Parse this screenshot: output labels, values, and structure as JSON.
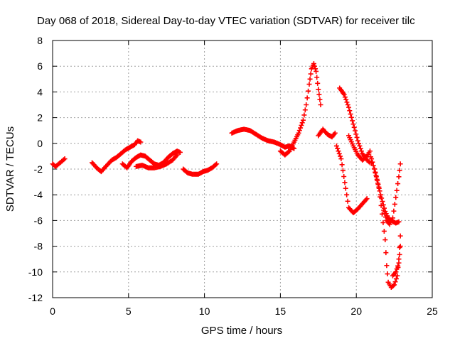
{
  "chart_data": {
    "type": "scatter",
    "title": "Day 068 of 2018, Sidereal Day-to-day VTEC variation (SDTVAR) for receiver tilc",
    "xlabel": "GPS time / hours",
    "ylabel": "SDTVAR / TECUs",
    "xlim": [
      0,
      25
    ],
    "ylim": [
      -12,
      8
    ],
    "xticks": [
      "0",
      "5",
      "10",
      "15",
      "20",
      "25"
    ],
    "yticks": [
      "-12",
      "-10",
      "-8",
      "-6",
      "-4",
      "-2",
      "0",
      "2",
      "4",
      "6",
      "8"
    ],
    "grid": true,
    "marker": "plus",
    "color": "#ff0000",
    "series": [
      {
        "points": [
          [
            0.0,
            -1.6
          ],
          [
            0.2,
            -1.8
          ],
          [
            0.4,
            -1.6
          ],
          [
            0.6,
            -1.4
          ],
          [
            0.8,
            -1.2
          ]
        ]
      },
      {
        "points": [
          [
            2.6,
            -1.5
          ],
          [
            2.9,
            -1.9
          ],
          [
            3.2,
            -2.2
          ],
          [
            3.5,
            -1.8
          ],
          [
            3.9,
            -1.3
          ],
          [
            4.2,
            -1.1
          ],
          [
            4.5,
            -0.8
          ],
          [
            4.8,
            -0.5
          ],
          [
            5.1,
            -0.3
          ],
          [
            5.4,
            -0.1
          ],
          [
            5.6,
            0.2
          ],
          [
            5.8,
            0.1
          ]
        ]
      },
      {
        "points": [
          [
            4.6,
            -1.6
          ],
          [
            4.9,
            -1.9
          ],
          [
            5.2,
            -1.4
          ],
          [
            5.5,
            -1.1
          ],
          [
            5.8,
            -0.9
          ],
          [
            6.1,
            -1.0
          ],
          [
            6.4,
            -1.3
          ],
          [
            6.7,
            -1.6
          ],
          [
            7.0,
            -1.7
          ],
          [
            7.3,
            -1.5
          ],
          [
            7.6,
            -1.1
          ],
          [
            7.9,
            -0.8
          ],
          [
            8.2,
            -0.6
          ],
          [
            8.4,
            -0.7
          ]
        ]
      },
      {
        "points": [
          [
            5.5,
            -1.8
          ],
          [
            5.9,
            -1.7
          ],
          [
            6.3,
            -1.9
          ],
          [
            6.7,
            -1.9
          ],
          [
            7.1,
            -1.8
          ],
          [
            7.5,
            -1.6
          ],
          [
            7.9,
            -1.3
          ],
          [
            8.2,
            -0.9
          ]
        ]
      },
      {
        "points": [
          [
            8.6,
            -2.0
          ],
          [
            8.9,
            -2.3
          ],
          [
            9.2,
            -2.4
          ],
          [
            9.6,
            -2.4
          ],
          [
            9.9,
            -2.2
          ],
          [
            10.2,
            -2.1
          ],
          [
            10.5,
            -1.9
          ],
          [
            10.8,
            -1.6
          ]
        ]
      },
      {
        "points": [
          [
            11.8,
            0.8
          ],
          [
            12.2,
            1.0
          ],
          [
            12.6,
            1.1
          ],
          [
            13.0,
            1.0
          ],
          [
            13.4,
            0.7
          ],
          [
            13.8,
            0.4
          ],
          [
            14.2,
            0.2
          ],
          [
            14.6,
            0.1
          ],
          [
            15.0,
            -0.1
          ],
          [
            15.3,
            -0.3
          ],
          [
            15.6,
            -0.2
          ],
          [
            15.9,
            -0.4
          ]
        ]
      },
      {
        "points": [
          [
            15.0,
            -0.6
          ],
          [
            15.3,
            -0.9
          ],
          [
            15.6,
            -0.6
          ],
          [
            15.9,
            0.1
          ],
          [
            16.2,
            0.8
          ],
          [
            16.5,
            1.8
          ],
          [
            16.7,
            3.0
          ],
          [
            16.9,
            4.6
          ],
          [
            17.05,
            5.8
          ],
          [
            17.2,
            6.2
          ],
          [
            17.35,
            5.6
          ],
          [
            17.5,
            4.2
          ],
          [
            17.65,
            3.0
          ]
        ]
      },
      {
        "points": [
          [
            17.5,
            0.6
          ],
          [
            17.8,
            1.1
          ],
          [
            18.1,
            0.7
          ],
          [
            18.4,
            0.5
          ],
          [
            18.6,
            0.8
          ]
        ]
      },
      {
        "points": [
          [
            18.7,
            -0.2
          ],
          [
            19.0,
            -1.2
          ],
          [
            19.3,
            -3.5
          ],
          [
            19.5,
            -5.0
          ],
          [
            19.8,
            -5.4
          ],
          [
            20.1,
            -5.1
          ],
          [
            20.4,
            -4.7
          ],
          [
            20.7,
            -4.3
          ]
        ]
      },
      {
        "points": [
          [
            18.9,
            4.3
          ],
          [
            19.2,
            3.8
          ],
          [
            19.5,
            2.8
          ],
          [
            19.8,
            1.5
          ],
          [
            20.1,
            0.2
          ],
          [
            20.4,
            -0.8
          ],
          [
            20.7,
            -1.3
          ],
          [
            20.9,
            -1.5
          ]
        ]
      },
      {
        "points": [
          [
            19.5,
            0.6
          ],
          [
            19.8,
            -0.2
          ],
          [
            20.1,
            -0.9
          ],
          [
            20.4,
            -1.3
          ],
          [
            20.7,
            -1.0
          ],
          [
            20.9,
            -0.6
          ],
          [
            21.0,
            -1.5
          ]
        ]
      },
      {
        "points": [
          [
            21.0,
            -1.2
          ],
          [
            21.3,
            -2.5
          ],
          [
            21.6,
            -4.0
          ],
          [
            21.9,
            -5.3
          ],
          [
            22.1,
            -5.8
          ],
          [
            22.3,
            -6.0
          ],
          [
            22.6,
            -6.2
          ],
          [
            22.8,
            -6.1
          ]
        ]
      },
      {
        "points": [
          [
            21.8,
            -5.2
          ],
          [
            22.0,
            -6.0
          ],
          [
            22.2,
            -6.3
          ],
          [
            22.4,
            -5.8
          ],
          [
            22.6,
            -4.2
          ],
          [
            22.8,
            -2.6
          ],
          [
            22.9,
            -1.6
          ]
        ]
      },
      {
        "points": [
          [
            21.2,
            -2.0
          ],
          [
            21.5,
            -3.5
          ],
          [
            21.7,
            -5.5
          ],
          [
            21.9,
            -7.5
          ],
          [
            22.0,
            -9.5
          ],
          [
            22.1,
            -10.8
          ],
          [
            22.3,
            -11.2
          ],
          [
            22.5,
            -11.0
          ],
          [
            22.7,
            -10.3
          ],
          [
            22.8,
            -9.0
          ],
          [
            22.9,
            -7.2
          ]
        ]
      },
      {
        "points": [
          [
            22.4,
            -10.3
          ],
          [
            22.6,
            -10.0
          ],
          [
            22.8,
            -9.3
          ],
          [
            22.9,
            -8.0
          ]
        ]
      }
    ]
  }
}
